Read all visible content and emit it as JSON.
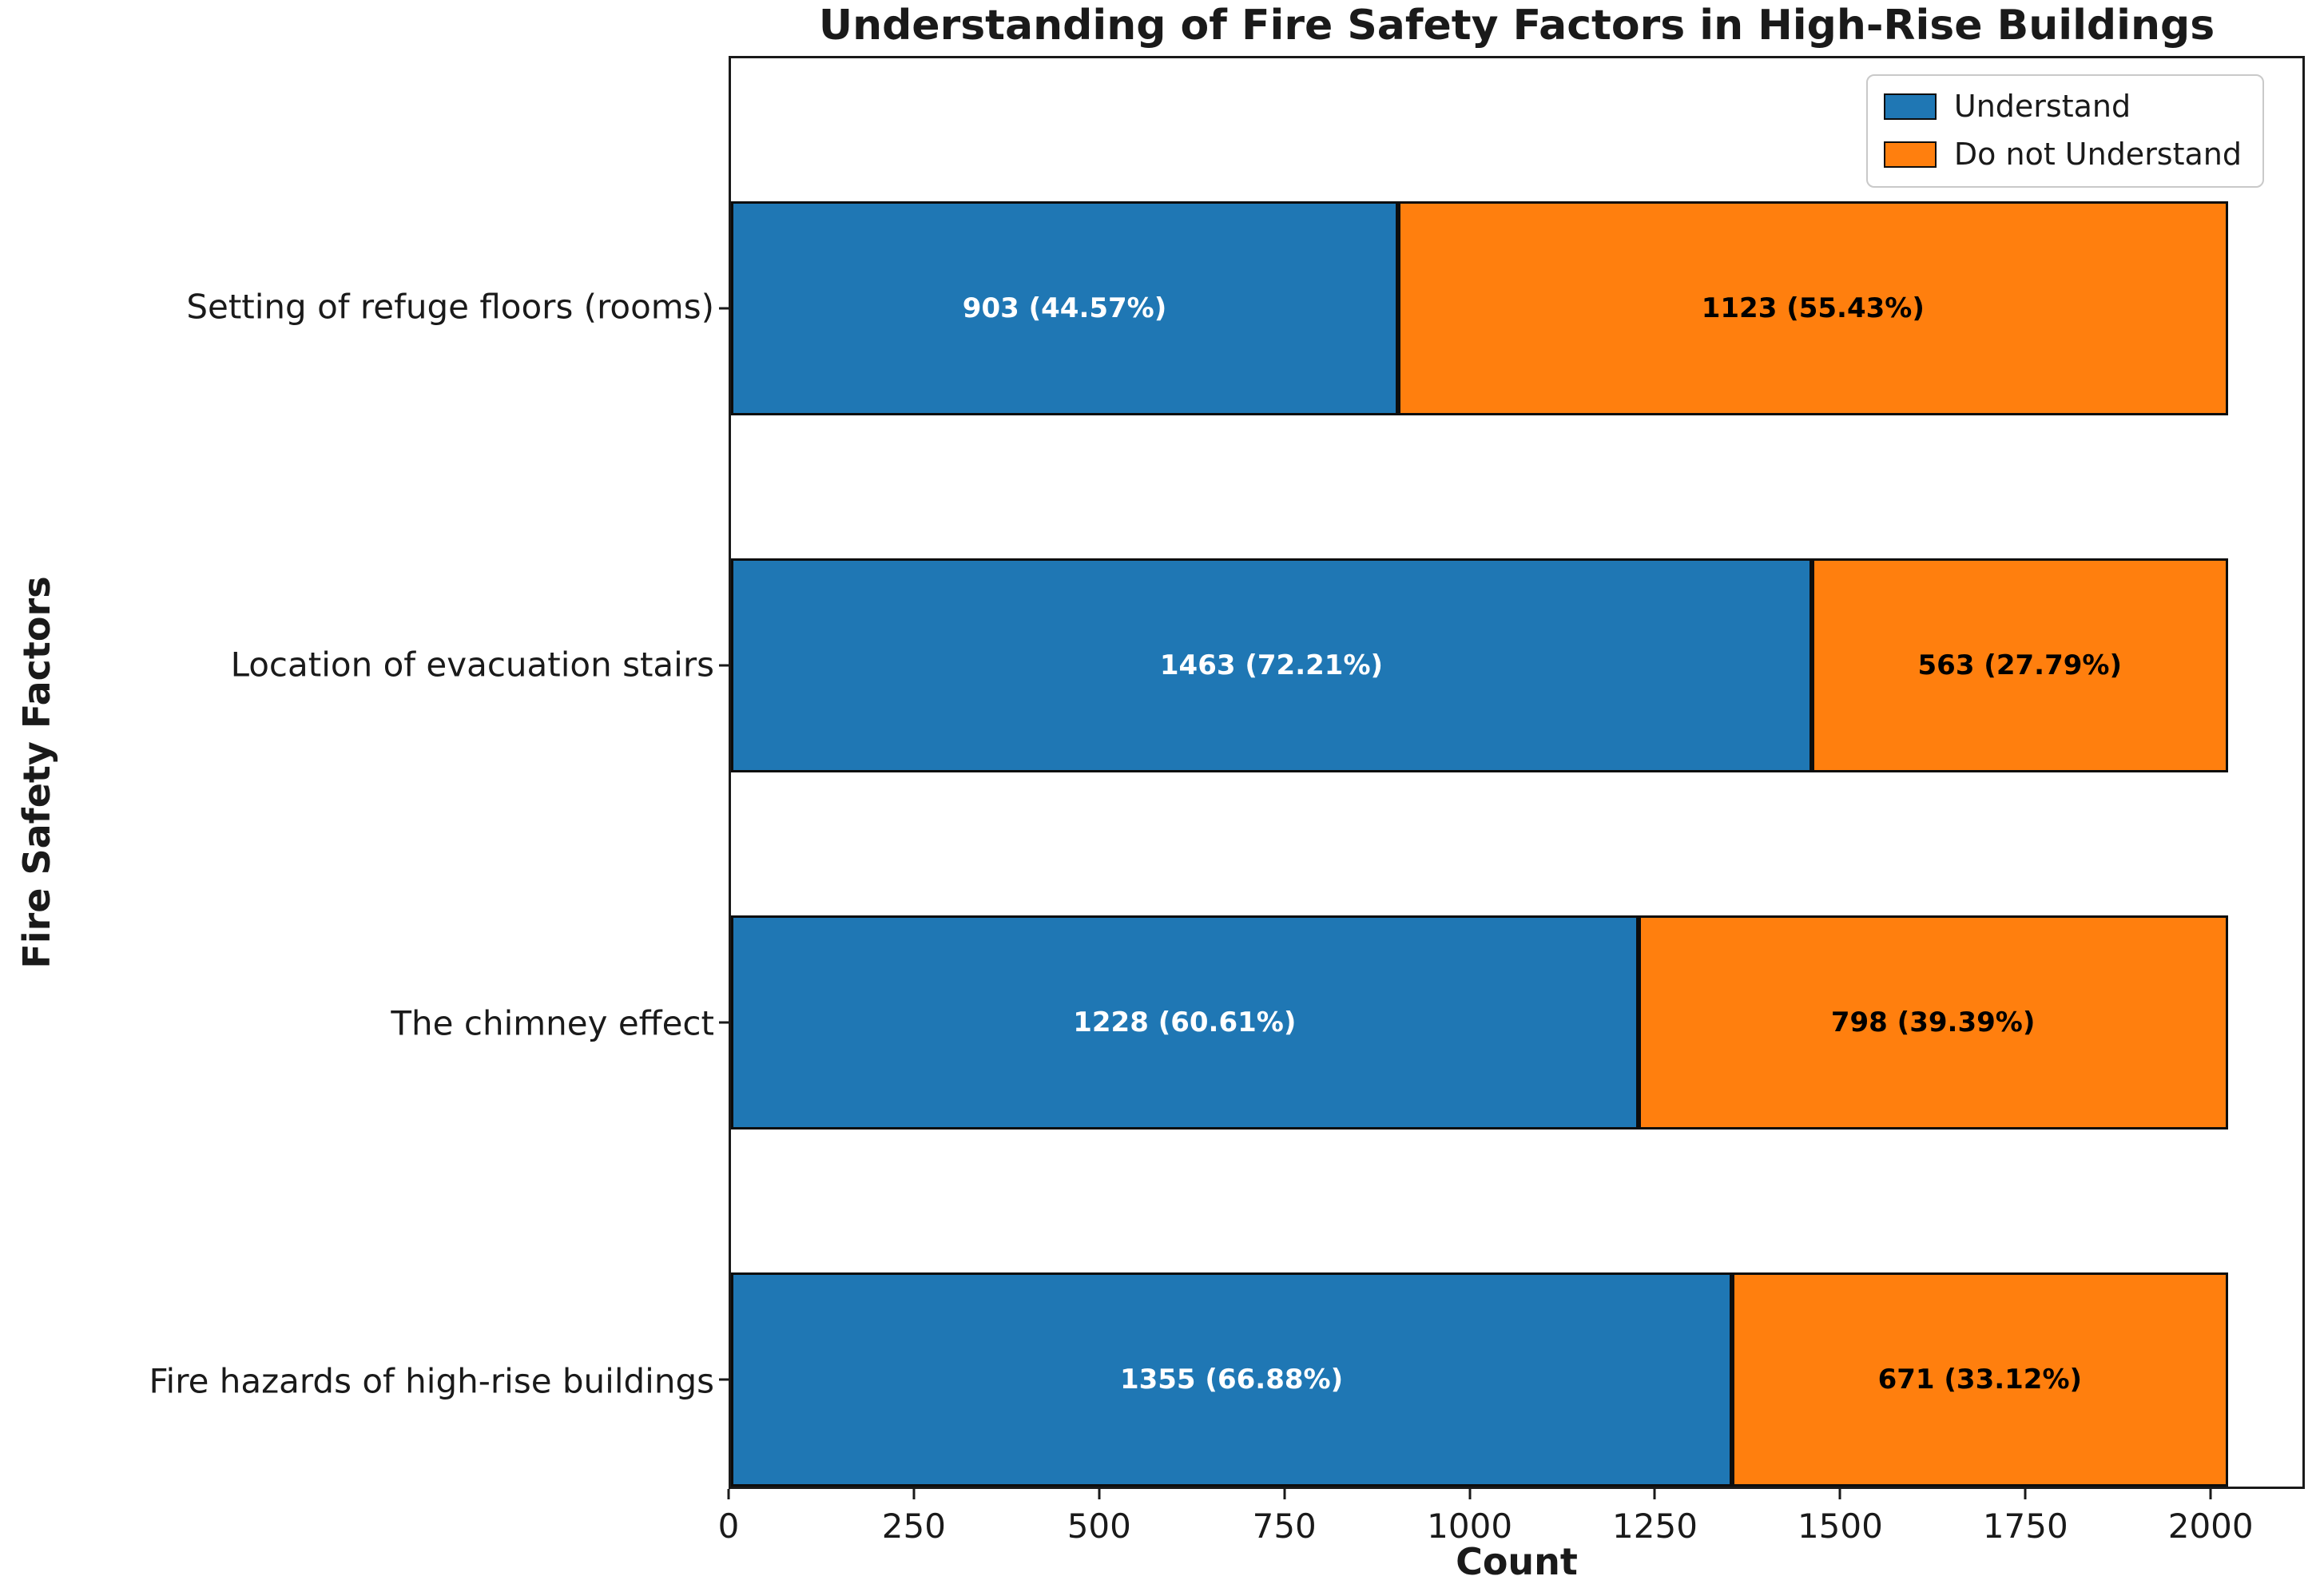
{
  "chart_data": {
    "type": "bar",
    "orientation": "horizontal",
    "stacked": true,
    "title": "Understanding of Fire Safety Factors in High-Rise Buildings",
    "xlabel": "Count",
    "ylabel": "Fire Safety Factors",
    "categories": [
      "Setting of refuge floors (rooms)",
      "Location of evacuation stairs",
      "The chimney effect",
      "Fire hazards of high-rise buildings"
    ],
    "series": [
      {
        "name": "Understand",
        "color": "#1f77b4",
        "label_color": "#ffffff",
        "values": [
          903,
          1463,
          1228,
          1355
        ],
        "labels": [
          "903 (44.57%)",
          "1463 (72.21%)",
          "1228 (60.61%)",
          "1355 (66.88%)"
        ]
      },
      {
        "name": "Do not Understand",
        "color": "#ff7f0e",
        "label_color": "#000000",
        "values": [
          1123,
          563,
          798,
          671
        ],
        "labels": [
          "1123 (55.43%)",
          "563 (27.79%)",
          "798 (39.39%)",
          "671 (33.12%)"
        ]
      }
    ],
    "row_totals": [
      2026,
      2026,
      2026,
      2026
    ],
    "x_ticks": [
      0,
      250,
      500,
      750,
      1000,
      1250,
      1500,
      1750,
      2000
    ],
    "xlim": [
      0,
      2127
    ],
    "grid": false,
    "legend": {
      "position": "upper right",
      "entries": [
        "Understand",
        "Do not Understand"
      ]
    },
    "bar_edge_color": "#0d0d0d"
  }
}
